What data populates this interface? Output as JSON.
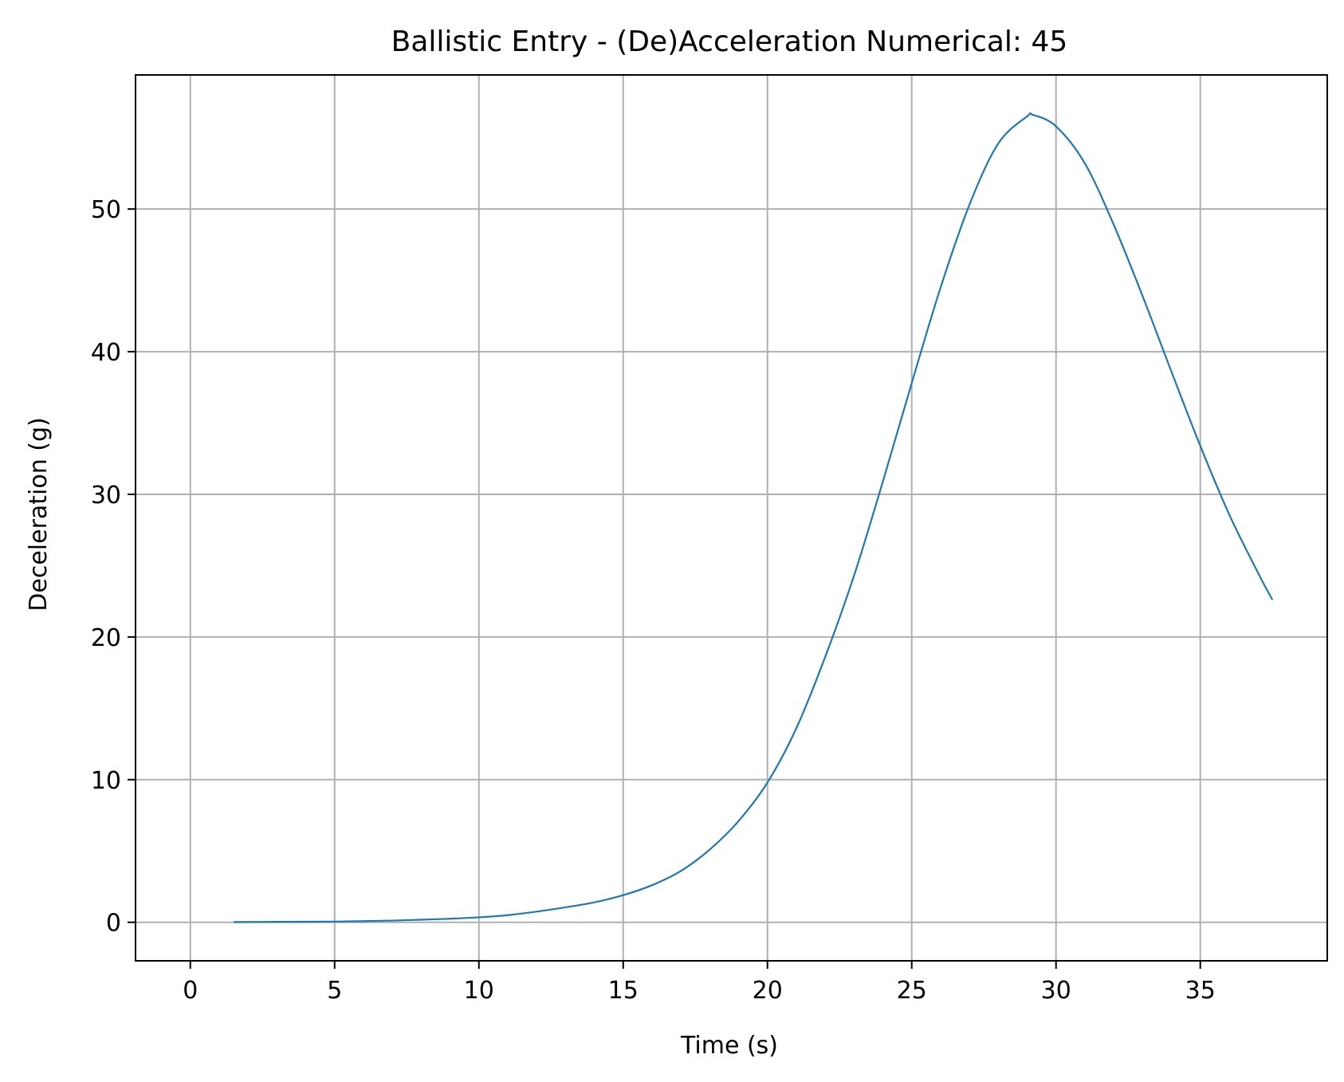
{
  "chart_data": {
    "type": "line",
    "title": "Ballistic Entry - (De)Acceleration Numerical: 45",
    "xlabel": "Time (s)",
    "ylabel": "Deceleration (g)",
    "xlim": [
      -1.9,
      39.4
    ],
    "ylim": [
      -2.7,
      59.4
    ],
    "xticks": [
      0,
      5,
      10,
      15,
      20,
      25,
      30,
      35
    ],
    "yticks": [
      0,
      10,
      20,
      30,
      40,
      50
    ],
    "grid": true,
    "legend": "none",
    "colors": {
      "line": "#1f77b4",
      "grid": "#b0b0b0",
      "axes": "#000000"
    },
    "series": [
      {
        "x": [
          1.5,
          3,
          5,
          6,
          7,
          8,
          9,
          10,
          11,
          12,
          13,
          14,
          15,
          16,
          17,
          18,
          19,
          20,
          21,
          22,
          23,
          24,
          25,
          26,
          27,
          28,
          29,
          29.2,
          30,
          31,
          32,
          33,
          34,
          35,
          36,
          37,
          37.5
        ],
        "y": [
          0.02,
          0.03,
          0.05,
          0.08,
          0.12,
          0.18,
          0.25,
          0.35,
          0.5,
          0.75,
          1.05,
          1.4,
          1.9,
          2.6,
          3.6,
          5.1,
          7.1,
          9.8,
          13.6,
          18.6,
          24.3,
          30.9,
          37.8,
          44.5,
          50.3,
          54.6,
          56.5,
          56.6,
          55.8,
          53.2,
          48.9,
          43.9,
          38.6,
          33.4,
          28.6,
          24.5,
          22.6
        ]
      }
    ]
  }
}
